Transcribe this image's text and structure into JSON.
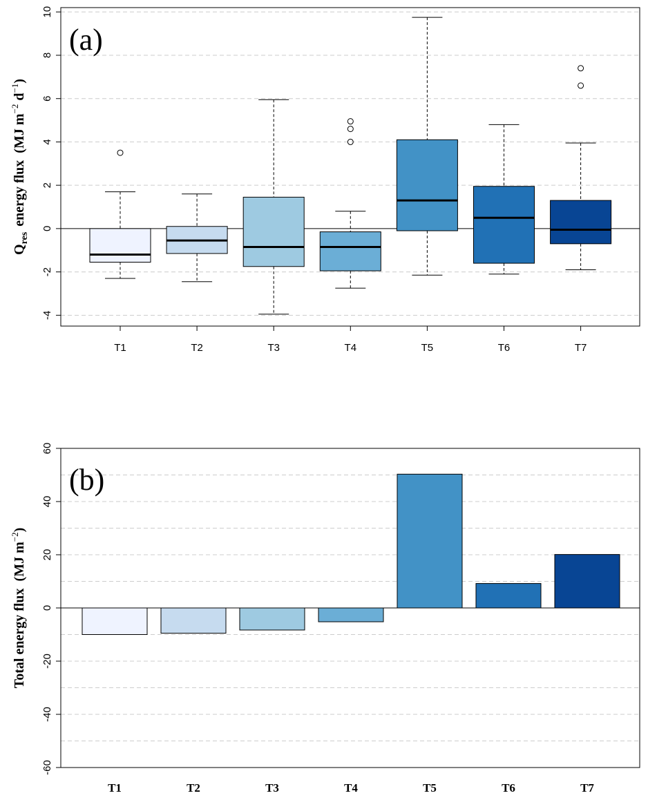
{
  "chart_data": [
    {
      "type": "boxplot",
      "panel_label": "(a)",
      "ylabel": {
        "prefix": "Q",
        "subscript": "res",
        "main": "energy flux",
        "units_open": "(MJ m",
        "units_sup1": "−2",
        "units_mid": " d",
        "units_sup2": "−1",
        "units_close": ")"
      },
      "ylim": [
        -4.5,
        10.2
      ],
      "yticks": [
        "-4",
        "-2",
        "0",
        "2",
        "4",
        "6",
        "8",
        "10"
      ],
      "grid": true,
      "categories": [
        "T1",
        "T2",
        "T3",
        "T4",
        "T5",
        "T6",
        "T7"
      ],
      "colors": [
        "#eff3ff",
        "#c6dbef",
        "#9ecae1",
        "#6baed6",
        "#4292c6",
        "#2171b5",
        "#084594"
      ],
      "boxes": [
        {
          "whisker_low": -2.3,
          "q1": -1.55,
          "median": -1.2,
          "q3": 0.0,
          "whisker_high": 1.7,
          "outliers": [
            3.5
          ]
        },
        {
          "whisker_low": -2.45,
          "q1": -1.15,
          "median": -0.55,
          "q3": 0.1,
          "whisker_high": 1.6,
          "outliers": []
        },
        {
          "whisker_low": -3.95,
          "q1": -1.75,
          "median": -0.85,
          "q3": 1.45,
          "whisker_high": 5.95,
          "outliers": []
        },
        {
          "whisker_low": -2.75,
          "q1": -1.95,
          "median": -0.85,
          "q3": -0.15,
          "whisker_high": 0.8,
          "outliers": [
            4.0,
            4.6,
            4.95
          ]
        },
        {
          "whisker_low": -2.15,
          "q1": -0.1,
          "median": 1.3,
          "q3": 4.1,
          "whisker_high": 9.75,
          "outliers": []
        },
        {
          "whisker_low": -2.1,
          "q1": -1.6,
          "median": 0.5,
          "q3": 1.95,
          "whisker_high": 4.8,
          "outliers": []
        },
        {
          "whisker_low": -1.9,
          "q1": -0.7,
          "median": -0.05,
          "q3": 1.3,
          "whisker_high": 3.95,
          "outliers": [
            6.6,
            7.4
          ]
        }
      ]
    },
    {
      "type": "bar",
      "panel_label": "(b)",
      "ylabel": {
        "main": "Total  energy flux",
        "units_open": "(MJ m",
        "units_sup1": "−2",
        "units_close": ")"
      },
      "ylim": [
        -60,
        60
      ],
      "yticks": [
        "-60",
        "-40",
        "-20",
        "0",
        "20",
        "40",
        "60"
      ],
      "grid": true,
      "categories": [
        "T1",
        "T2",
        "T3",
        "T4",
        "T5",
        "T6",
        "T7"
      ],
      "values": [
        -10,
        -9.5,
        -8.3,
        -5.2,
        50.3,
        9.2,
        20.1
      ],
      "colors": [
        "#eff3ff",
        "#c6dbef",
        "#9ecae1",
        "#6baed6",
        "#4292c6",
        "#2171b5",
        "#084594"
      ]
    }
  ]
}
